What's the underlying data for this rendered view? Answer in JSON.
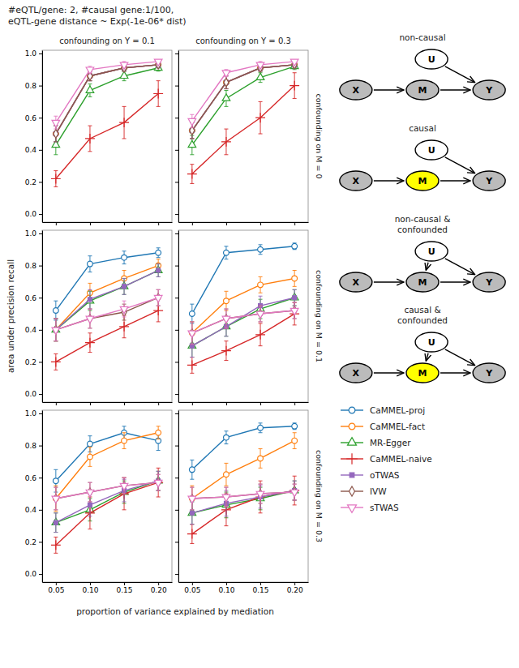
{
  "title": "#eQTL/gene: 2, #causal gene:1/100,\neQTL-gene distance ~ Exp(-1e-06* dist)",
  "xlabel": "proportion of variance explained by mediation",
  "ylabel": "area under precision recall",
  "chart_data": [
    {
      "type": "line",
      "title": "confounding on Y = 0.1",
      "tick_labels": "y",
      "legend": "right",
      "x": [
        0.05,
        0.1,
        0.15,
        0.2
      ],
      "xlim": [
        0.03,
        0.22
      ],
      "xticks": [
        0.05,
        {
          "value": 0.1,
          "label": "0.10"
        },
        0.15,
        {
          "value": 0.2,
          "label": "0.20"
        }
      ],
      "ylim": [
        -0.05,
        1.02
      ],
      "yticks": [
        {
          "value": 0,
          "label": "0.0"
        },
        0.2,
        0.4,
        0.6,
        0.8,
        {
          "value": 1,
          "label": "1.0"
        }
      ],
      "series": [
        {
          "name": "CaMMEL-proj",
          "marker": "circle",
          "values": [
            0.5,
            0.86,
            0.91,
            0.93
          ],
          "errors": [
            0.05,
            0.03,
            0.02,
            0.02
          ]
        },
        {
          "name": "CaMMEL-fact",
          "marker": "circle",
          "values": [
            0.5,
            0.86,
            0.91,
            0.93
          ],
          "errors": [
            0.05,
            0.03,
            0.02,
            0.02
          ]
        },
        {
          "name": "MR-Egger",
          "marker": "triangle",
          "values": [
            0.43,
            0.77,
            0.86,
            0.91
          ],
          "errors": [
            0.06,
            0.04,
            0.03,
            0.02
          ]
        },
        {
          "name": "CaMMEL-naive",
          "marker": "plus",
          "values": [
            0.22,
            0.47,
            0.57,
            0.75
          ],
          "errors": [
            0.05,
            0.08,
            0.1,
            0.08
          ]
        },
        {
          "name": "oTWAS",
          "marker": "square",
          "values": [
            0.5,
            0.86,
            0.91,
            0.93
          ],
          "errors": [
            0.05,
            0.03,
            0.02,
            0.02
          ]
        },
        {
          "name": "IVW",
          "marker": "diamond",
          "values": [
            0.5,
            0.86,
            0.91,
            0.93
          ],
          "errors": [
            0.05,
            0.03,
            0.02,
            0.02
          ]
        },
        {
          "name": "sTWAS",
          "marker": "triangle-down",
          "values": [
            0.57,
            0.9,
            0.93,
            0.95
          ],
          "errors": [
            0.04,
            0.02,
            0.02,
            0.01
          ]
        }
      ]
    },
    {
      "type": "line",
      "title": "confounding on Y = 0.3",
      "annotations": [
        "confounding on M = 0"
      ],
      "tick_labels": false,
      "x": [
        0.05,
        0.1,
        0.15,
        0.2
      ],
      "xlim": [
        0.03,
        0.22
      ],
      "xticks": [
        0.05,
        {
          "value": 0.1,
          "label": "0.10"
        },
        0.15,
        {
          "value": 0.2,
          "label": "0.20"
        }
      ],
      "ylim": [
        -0.05,
        1.02
      ],
      "yticks": [
        {
          "value": 0,
          "label": "0.0"
        },
        0.2,
        0.4,
        0.6,
        0.8,
        {
          "value": 1,
          "label": "1.0"
        }
      ],
      "series": [
        {
          "name": "CaMMEL-proj",
          "marker": "circle",
          "values": [
            0.52,
            0.82,
            0.91,
            0.93
          ],
          "errors": [
            0.05,
            0.04,
            0.02,
            0.02
          ]
        },
        {
          "name": "CaMMEL-fact",
          "marker": "circle",
          "values": [
            0.52,
            0.82,
            0.91,
            0.93
          ],
          "errors": [
            0.05,
            0.04,
            0.02,
            0.02
          ]
        },
        {
          "name": "MR-Egger",
          "marker": "triangle",
          "values": [
            0.43,
            0.72,
            0.85,
            0.92
          ],
          "errors": [
            0.06,
            0.05,
            0.03,
            0.02
          ]
        },
        {
          "name": "CaMMEL-naive",
          "marker": "plus",
          "values": [
            0.25,
            0.45,
            0.6,
            0.8
          ],
          "errors": [
            0.06,
            0.08,
            0.1,
            0.08
          ]
        },
        {
          "name": "oTWAS",
          "marker": "square",
          "values": [
            0.52,
            0.82,
            0.91,
            0.93
          ],
          "errors": [
            0.05,
            0.04,
            0.02,
            0.02
          ]
        },
        {
          "name": "IVW",
          "marker": "diamond",
          "values": [
            0.52,
            0.82,
            0.91,
            0.93
          ],
          "errors": [
            0.05,
            0.04,
            0.02,
            0.02
          ]
        },
        {
          "name": "sTWAS",
          "marker": "triangle-down",
          "values": [
            0.58,
            0.88,
            0.93,
            0.95
          ],
          "errors": [
            0.04,
            0.02,
            0.02,
            0.01
          ]
        }
      ]
    },
    {
      "type": "line",
      "tick_labels": "y",
      "x": [
        0.05,
        0.1,
        0.15,
        0.2
      ],
      "xlim": [
        0.03,
        0.22
      ],
      "xticks": [
        0.05,
        {
          "value": 0.1,
          "label": "0.10"
        },
        0.15,
        {
          "value": 0.2,
          "label": "0.20"
        }
      ],
      "ylim": [
        -0.05,
        1.02
      ],
      "yticks": [
        {
          "value": 0,
          "label": "0.0"
        },
        0.2,
        0.4,
        0.6,
        0.8,
        {
          "value": 1,
          "label": "1.0"
        }
      ],
      "series": [
        {
          "name": "CaMMEL-proj",
          "marker": "circle",
          "values": [
            0.52,
            0.81,
            0.85,
            0.88
          ],
          "errors": [
            0.06,
            0.05,
            0.04,
            0.03
          ]
        },
        {
          "name": "CaMMEL-fact",
          "marker": "circle",
          "values": [
            0.4,
            0.63,
            0.72,
            0.8
          ],
          "errors": [
            0.07,
            0.06,
            0.05,
            0.04
          ]
        },
        {
          "name": "MR-Egger",
          "marker": "triangle",
          "values": [
            0.4,
            0.58,
            0.67,
            0.77
          ],
          "errors": [
            0.07,
            0.06,
            0.05,
            0.04
          ]
        },
        {
          "name": "CaMMEL-naive",
          "marker": "plus",
          "values": [
            0.2,
            0.32,
            0.42,
            0.52
          ],
          "errors": [
            0.05,
            0.06,
            0.07,
            0.07
          ]
        },
        {
          "name": "oTWAS",
          "marker": "square",
          "values": [
            0.4,
            0.59,
            0.67,
            0.77
          ],
          "errors": [
            0.07,
            0.06,
            0.05,
            0.04
          ]
        },
        {
          "name": "IVW",
          "marker": "diamond",
          "values": [
            0.4,
            0.47,
            0.51,
            0.6
          ],
          "errors": [
            0.07,
            0.06,
            0.05,
            0.05
          ]
        },
        {
          "name": "sTWAS",
          "marker": "triangle-down",
          "values": [
            0.4,
            0.47,
            0.53,
            0.6
          ],
          "errors": [
            0.07,
            0.06,
            0.05,
            0.05
          ]
        }
      ]
    },
    {
      "type": "line",
      "annotations": [
        "confounding on M = 0.1"
      ],
      "tick_labels": false,
      "x": [
        0.05,
        0.1,
        0.15,
        0.2
      ],
      "xlim": [
        0.03,
        0.22
      ],
      "xticks": [
        0.05,
        {
          "value": 0.1,
          "label": "0.10"
        },
        0.15,
        {
          "value": 0.2,
          "label": "0.20"
        }
      ],
      "ylim": [
        -0.05,
        1.02
      ],
      "yticks": [
        {
          "value": 0,
          "label": "0.0"
        },
        0.2,
        0.4,
        0.6,
        0.8,
        {
          "value": 1,
          "label": "1.0"
        }
      ],
      "series": [
        {
          "name": "CaMMEL-proj",
          "marker": "circle",
          "values": [
            0.5,
            0.88,
            0.9,
            0.92
          ],
          "errors": [
            0.06,
            0.04,
            0.03,
            0.02
          ]
        },
        {
          "name": "CaMMEL-fact",
          "marker": "circle",
          "values": [
            0.38,
            0.58,
            0.68,
            0.72
          ],
          "errors": [
            0.07,
            0.06,
            0.05,
            0.05
          ]
        },
        {
          "name": "MR-Egger",
          "marker": "triangle",
          "values": [
            0.3,
            0.42,
            0.53,
            0.6
          ],
          "errors": [
            0.07,
            0.06,
            0.06,
            0.05
          ]
        },
        {
          "name": "CaMMEL-naive",
          "marker": "plus",
          "values": [
            0.18,
            0.27,
            0.37,
            0.5
          ],
          "errors": [
            0.05,
            0.06,
            0.07,
            0.07
          ]
        },
        {
          "name": "oTWAS",
          "marker": "square",
          "values": [
            0.3,
            0.42,
            0.55,
            0.6
          ],
          "errors": [
            0.07,
            0.06,
            0.06,
            0.05
          ]
        },
        {
          "name": "IVW",
          "marker": "diamond",
          "values": [
            0.38,
            0.47,
            0.5,
            0.52
          ],
          "errors": [
            0.07,
            0.06,
            0.05,
            0.05
          ]
        },
        {
          "name": "sTWAS",
          "marker": "triangle-down",
          "values": [
            0.38,
            0.47,
            0.5,
            0.52
          ],
          "errors": [
            0.07,
            0.06,
            0.05,
            0.05
          ]
        }
      ]
    },
    {
      "type": "line",
      "x": [
        0.05,
        0.1,
        0.15,
        0.2
      ],
      "xlim": [
        0.03,
        0.22
      ],
      "xticks": [
        0.05,
        {
          "value": 0.1,
          "label": "0.10"
        },
        0.15,
        {
          "value": 0.2,
          "label": "0.20"
        }
      ],
      "ylim": [
        -0.05,
        1.02
      ],
      "yticks": [
        {
          "value": 0,
          "label": "0.0"
        },
        0.2,
        0.4,
        0.6,
        0.8,
        {
          "value": 1,
          "label": "1.0"
        }
      ],
      "series": [
        {
          "name": "CaMMEL-proj",
          "marker": "circle",
          "values": [
            0.58,
            0.81,
            0.88,
            0.83
          ],
          "errors": [
            0.07,
            0.05,
            0.04,
            0.06
          ]
        },
        {
          "name": "CaMMEL-fact",
          "marker": "circle",
          "values": [
            0.47,
            0.73,
            0.83,
            0.88
          ],
          "errors": [
            0.08,
            0.06,
            0.05,
            0.04
          ]
        },
        {
          "name": "MR-Egger",
          "marker": "triangle",
          "values": [
            0.32,
            0.4,
            0.51,
            0.58
          ],
          "errors": [
            0.06,
            0.07,
            0.07,
            0.06
          ]
        },
        {
          "name": "CaMMEL-naive",
          "marker": "plus",
          "values": [
            0.18,
            0.38,
            0.5,
            0.57
          ],
          "errors": [
            0.05,
            0.1,
            0.1,
            0.09
          ]
        },
        {
          "name": "oTWAS",
          "marker": "square",
          "values": [
            0.32,
            0.43,
            0.52,
            0.58
          ],
          "errors": [
            0.06,
            0.07,
            0.07,
            0.06
          ]
        },
        {
          "name": "IVW",
          "marker": "diamond",
          "values": [
            0.47,
            0.51,
            0.55,
            0.57
          ],
          "errors": [
            0.07,
            0.06,
            0.05,
            0.05
          ]
        },
        {
          "name": "sTWAS",
          "marker": "triangle-down",
          "values": [
            0.47,
            0.51,
            0.55,
            0.57
          ],
          "errors": [
            0.07,
            0.06,
            0.05,
            0.05
          ]
        }
      ]
    },
    {
      "type": "line",
      "annotations": [
        "confounding on M = 0.3"
      ],
      "tick_labels": "x",
      "x": [
        0.05,
        0.1,
        0.15,
        0.2
      ],
      "xlim": [
        0.03,
        0.22
      ],
      "xticks": [
        0.05,
        {
          "value": 0.1,
          "label": "0.10"
        },
        0.15,
        {
          "value": 0.2,
          "label": "0.20"
        }
      ],
      "ylim": [
        -0.05,
        1.02
      ],
      "yticks": [
        {
          "value": 0,
          "label": "0.0"
        },
        0.2,
        0.4,
        0.6,
        0.8,
        {
          "value": 1,
          "label": "1.0"
        }
      ],
      "series": [
        {
          "name": "CaMMEL-proj",
          "marker": "circle",
          "values": [
            0.65,
            0.85,
            0.91,
            0.92
          ],
          "errors": [
            0.06,
            0.04,
            0.03,
            0.02
          ]
        },
        {
          "name": "CaMMEL-fact",
          "marker": "circle",
          "values": [
            0.47,
            0.62,
            0.72,
            0.83
          ],
          "errors": [
            0.08,
            0.07,
            0.06,
            0.05
          ]
        },
        {
          "name": "MR-Egger",
          "marker": "triangle",
          "values": [
            0.38,
            0.43,
            0.47,
            0.52
          ],
          "errors": [
            0.07,
            0.08,
            0.07,
            0.06
          ]
        },
        {
          "name": "CaMMEL-naive",
          "marker": "plus",
          "values": [
            0.25,
            0.4,
            0.48,
            0.52
          ],
          "errors": [
            0.06,
            0.1,
            0.1,
            0.09
          ]
        },
        {
          "name": "oTWAS",
          "marker": "square",
          "values": [
            0.38,
            0.44,
            0.48,
            0.52
          ],
          "errors": [
            0.07,
            0.08,
            0.07,
            0.06
          ]
        },
        {
          "name": "IVW",
          "marker": "diamond",
          "values": [
            0.47,
            0.48,
            0.5,
            0.51
          ],
          "errors": [
            0.07,
            0.06,
            0.06,
            0.05
          ]
        },
        {
          "name": "sTWAS",
          "marker": "triangle-down",
          "values": [
            0.47,
            0.48,
            0.5,
            0.51
          ],
          "errors": [
            0.07,
            0.06,
            0.06,
            0.05
          ]
        }
      ]
    },
    {
      "type": "diagram",
      "title": "non-causal",
      "nodes": [
        "U",
        "X",
        "M",
        "Y"
      ],
      "colors": [
        "#FFFFFF",
        "#BBBBBB",
        "#BBBBBB",
        "#BBBBBB"
      ],
      "edges": [
        [
          "X",
          "M"
        ],
        [
          "U",
          "Y"
        ],
        [
          "M",
          "Y"
        ]
      ]
    },
    {
      "type": "diagram",
      "title": "causal",
      "nodes": [
        "U",
        "X",
        "M",
        "Y"
      ],
      "colors": [
        "#FFFFFF",
        "#BBBBBB",
        "#FFFF00",
        "#BBBBBB"
      ],
      "edges": [
        [
          "X",
          "M"
        ],
        [
          "U",
          "Y"
        ],
        [
          "M",
          "Y"
        ]
      ]
    },
    {
      "type": "diagram",
      "title": "non-causal &\nconfounded",
      "nodes": [
        "U",
        "X",
        "M",
        "Y"
      ],
      "colors": [
        "#FFFFFF",
        "#BBBBBB",
        "#BBBBBB",
        "#BBBBBB"
      ],
      "edges": [
        [
          "X",
          "M"
        ],
        [
          "M",
          "Y"
        ],
        [
          "U",
          "M"
        ],
        [
          "U",
          "Y"
        ]
      ]
    },
    {
      "type": "diagram",
      "title": "causal &\nconfounded",
      "nodes": [
        "U",
        "X",
        "M",
        "Y"
      ],
      "colors": [
        "#FFFFFF",
        "#BBBBBB",
        "#FFFF00",
        "#BBBBBB"
      ],
      "edges": [
        [
          "X",
          "M"
        ],
        [
          "M",
          "Y"
        ],
        [
          "U",
          "M"
        ],
        [
          "U",
          "Y"
        ]
      ]
    }
  ]
}
